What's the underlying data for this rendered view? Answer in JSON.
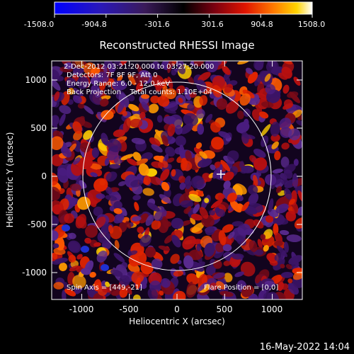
{
  "colorbar": {
    "min_label": "-1508.0",
    "tick_labels": [
      "-1508.0",
      "-904.8",
      "-301.6",
      "301.6",
      "904.8",
      "1508.0"
    ],
    "colors": [
      "#0000ff",
      "#2a10b0",
      "#3a1a5a",
      "#000000",
      "#7a0010",
      "#e01400",
      "#ff7a00",
      "#ffd400",
      "#ffffff"
    ]
  },
  "plot": {
    "title": "Reconstructed RHESSI Image",
    "xlabel": "Heliocentric X (arcsec)",
    "ylabel": "Heliocentric Y (arcsec)",
    "x_ticks": [
      "-1000",
      "-500",
      "0",
      "500",
      "1000"
    ],
    "y_ticks": [
      "1000",
      "500",
      "0",
      "-500",
      "-1000"
    ],
    "info_lines": [
      "2-Dec-2012 03:21:20.000 to 03:27:20.000",
      "Detectors: 7F 8F 9F, Att 0",
      "Energy Range: 6.0 - 12.0 keV",
      "Back Projection    Total counts: 1.10E+04"
    ],
    "spin_axis": "Spin Axis = [449,-21]",
    "flare_position": "Flare Position = [0,0]"
  },
  "footer": {
    "timestamp": "16-May-2022 14:04"
  }
}
